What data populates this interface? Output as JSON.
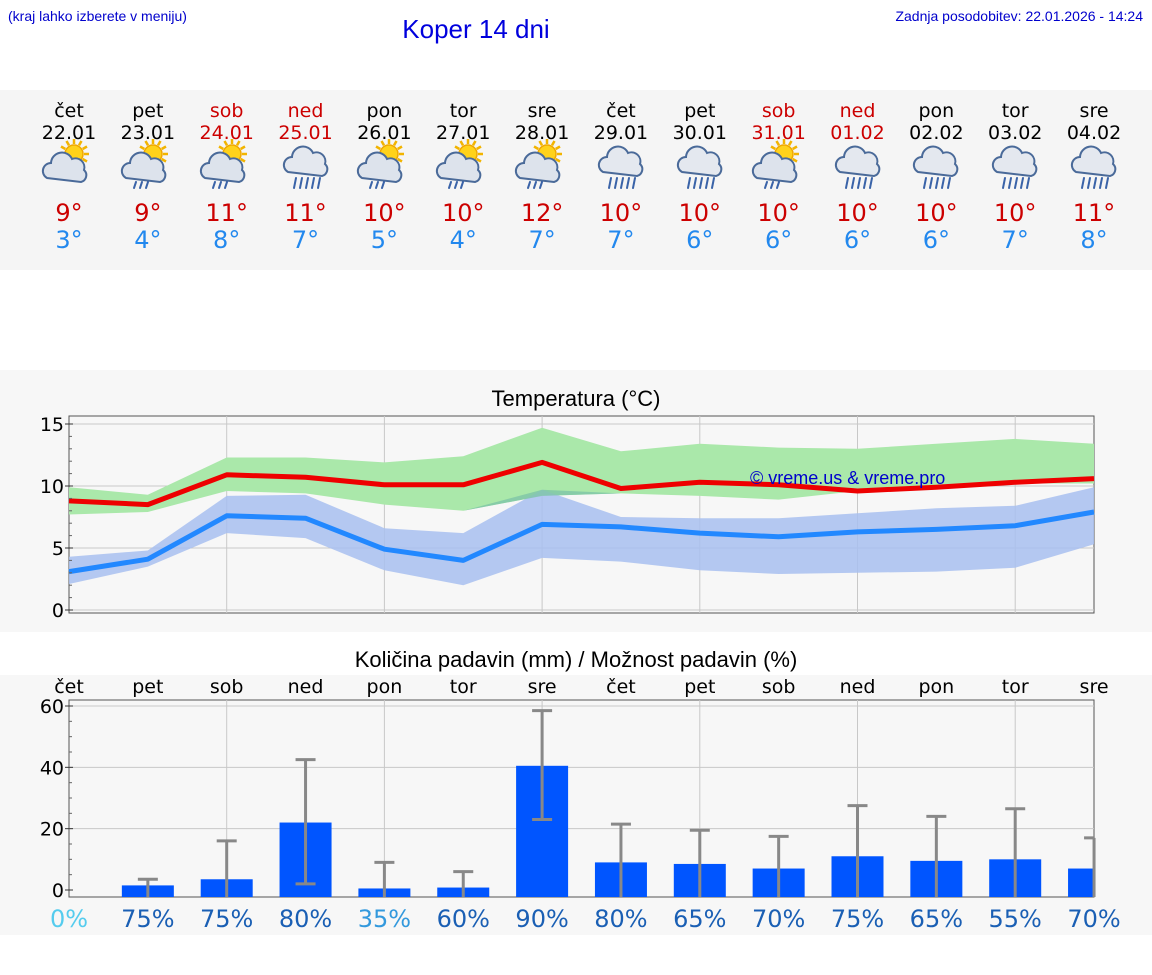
{
  "header": {
    "hint": "(kraj lahko izberete v meniju)",
    "title": "Koper 14 dni",
    "updated": "Zadnja posodobitev: 22.01.2026 - 14:24"
  },
  "days": [
    {
      "name": "čet",
      "date": "22.01",
      "weekend": false,
      "icon": "sun-cloud-icon",
      "tmax": "9°",
      "tmin": "3°"
    },
    {
      "name": "pet",
      "date": "23.01",
      "weekend": false,
      "icon": "sun-cloud-rain-icon",
      "tmax": "9°",
      "tmin": "4°"
    },
    {
      "name": "sob",
      "date": "24.01",
      "weekend": true,
      "icon": "sun-cloud-rain-icon",
      "tmax": "11°",
      "tmin": "8°"
    },
    {
      "name": "ned",
      "date": "25.01",
      "weekend": true,
      "icon": "cloud-rain-icon",
      "tmax": "11°",
      "tmin": "7°"
    },
    {
      "name": "pon",
      "date": "26.01",
      "weekend": false,
      "icon": "sun-cloud-rain-icon",
      "tmax": "10°",
      "tmin": "5°"
    },
    {
      "name": "tor",
      "date": "27.01",
      "weekend": false,
      "icon": "sun-cloud-rain-icon",
      "tmax": "10°",
      "tmin": "4°"
    },
    {
      "name": "sre",
      "date": "28.01",
      "weekend": false,
      "icon": "sun-cloud-rain-icon",
      "tmax": "12°",
      "tmin": "7°"
    },
    {
      "name": "čet",
      "date": "29.01",
      "weekend": false,
      "icon": "cloud-rain-icon",
      "tmax": "10°",
      "tmin": "7°"
    },
    {
      "name": "pet",
      "date": "30.01",
      "weekend": false,
      "icon": "cloud-rain-icon",
      "tmax": "10°",
      "tmin": "6°"
    },
    {
      "name": "sob",
      "date": "31.01",
      "weekend": true,
      "icon": "sun-cloud-rain-icon",
      "tmax": "10°",
      "tmin": "6°"
    },
    {
      "name": "ned",
      "date": "01.02",
      "weekend": true,
      "icon": "cloud-rain-icon",
      "tmax": "10°",
      "tmin": "6°"
    },
    {
      "name": "pon",
      "date": "02.02",
      "weekend": false,
      "icon": "cloud-rain-icon",
      "tmax": "10°",
      "tmin": "6°"
    },
    {
      "name": "tor",
      "date": "03.02",
      "weekend": false,
      "icon": "cloud-rain-icon",
      "tmax": "10°",
      "tmin": "7°"
    },
    {
      "name": "sre",
      "date": "04.02",
      "weekend": false,
      "icon": "cloud-rain-icon",
      "tmax": "11°",
      "tmin": "8°"
    }
  ],
  "colors": {
    "max_line": "#ee0000",
    "min_line": "#2288ff",
    "max_band": "#aae8aa",
    "min_band": "#a8c0f0",
    "overlap_band": "#7ec4a8",
    "bar": "#0055ff",
    "whisker": "#888888",
    "weekend": "#cc0000",
    "tmin_text": "#2288ee"
  },
  "chart_data": [
    {
      "type": "line",
      "title": "Temperatura (°C)",
      "watermark": "© vreme.us & vreme.pro",
      "x": [
        0,
        1,
        2,
        3,
        4,
        5,
        6,
        7,
        8,
        9,
        10,
        11,
        12,
        13
      ],
      "ylim": [
        0,
        15
      ],
      "yticks": [
        "0",
        "5",
        "10",
        "15"
      ],
      "series": [
        {
          "name": "max",
          "values": [
            8.8,
            8.5,
            10.9,
            10.7,
            10.1,
            10.1,
            11.9,
            9.8,
            10.3,
            10.1,
            9.6,
            9.9,
            10.3,
            10.6
          ],
          "band_low": [
            7.7,
            7.9,
            9.6,
            9.4,
            8.5,
            8.0,
            9.2,
            9.4,
            9.2,
            8.9,
            9.6,
            9.9,
            10.2,
            10.2
          ],
          "band_high": [
            9.9,
            9.3,
            12.3,
            12.3,
            11.9,
            12.4,
            14.7,
            12.8,
            13.4,
            13.1,
            13.0,
            13.4,
            13.8,
            13.4
          ]
        },
        {
          "name": "min",
          "values": [
            3.1,
            4.1,
            7.6,
            7.4,
            4.9,
            4.0,
            6.9,
            6.7,
            6.2,
            5.9,
            6.3,
            6.5,
            6.8,
            7.9
          ],
          "band_low": [
            2.1,
            3.5,
            6.2,
            5.8,
            3.2,
            2.0,
            4.2,
            3.9,
            3.2,
            2.9,
            3.0,
            3.1,
            3.4,
            5.3
          ],
          "band_high": [
            4.3,
            4.8,
            9.2,
            9.3,
            6.6,
            6.2,
            9.7,
            7.5,
            7.4,
            7.4,
            7.8,
            8.2,
            8.4,
            9.9
          ]
        }
      ]
    },
    {
      "type": "bar",
      "title": "Količina padavin (mm) / Možnost padavin (%)",
      "categories": [
        "čet",
        "pet",
        "sob",
        "ned",
        "pon",
        "tor",
        "sre",
        "čet",
        "pet",
        "sob",
        "ned",
        "pon",
        "tor",
        "sre"
      ],
      "values": [
        0,
        1.5,
        3.5,
        22,
        0.5,
        0.8,
        40.5,
        9,
        8.5,
        7,
        11,
        9.5,
        10,
        7
      ],
      "err_low": [
        0,
        0,
        0,
        2,
        0,
        0,
        23,
        0,
        0,
        0,
        0,
        0,
        0,
        0
      ],
      "err_high": [
        0,
        3.5,
        16,
        42.5,
        9,
        6,
        58.5,
        21.5,
        19.5,
        17.5,
        27.5,
        24,
        26.5,
        17
      ],
      "ylim": [
        0,
        60
      ],
      "yticks": [
        "0",
        "20",
        "40",
        "60"
      ],
      "probability": [
        "0%",
        "75%",
        "75%",
        "80%",
        "35%",
        "60%",
        "90%",
        "80%",
        "65%",
        "70%",
        "75%",
        "65%",
        "55%",
        "70%"
      ]
    }
  ]
}
